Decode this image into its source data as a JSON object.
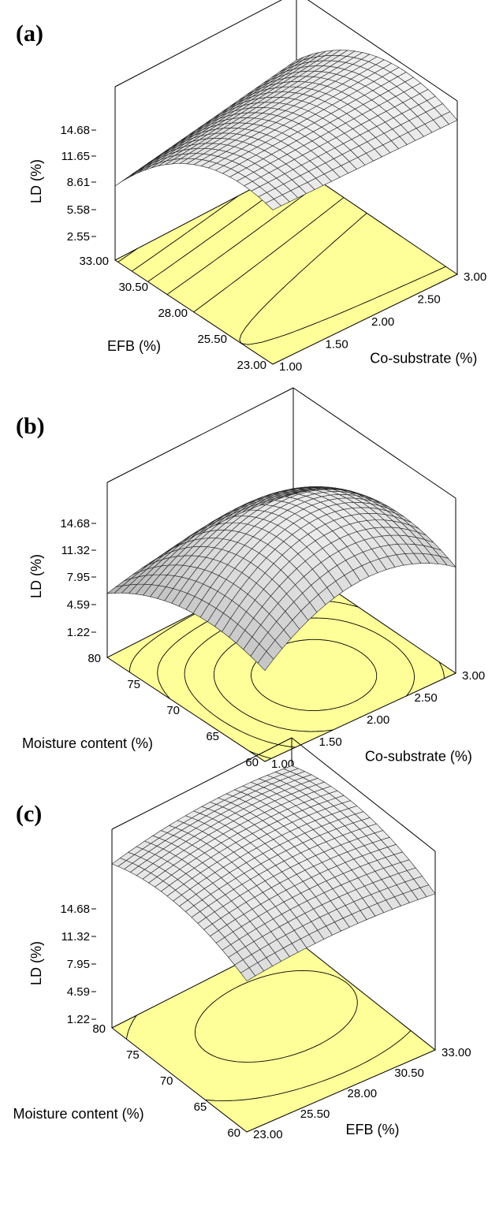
{
  "chart_data": [
    {
      "type": "surface",
      "panel_label": "(a)",
      "zlabel": "LD (%)",
      "z_ticks": [
        "2.55",
        "5.58",
        "8.61",
        "11.65",
        "14.68"
      ],
      "ylabel": "EFB (%)",
      "y_ticks": [
        "23.00",
        "25.50",
        "28.00",
        "30.50",
        "33.00"
      ],
      "xlabel": "Co-substrate (%)",
      "x_ticks": [
        "1.00",
        "1.50",
        "2.00",
        "2.50",
        "3.00"
      ],
      "zlim": [
        2.55,
        14.68
      ],
      "colors": {
        "base": "#ffff99",
        "surface": "#dddddd"
      }
    },
    {
      "type": "surface",
      "panel_label": "(b)",
      "zlabel": "LD (%)",
      "z_ticks": [
        "1.22",
        "4.59",
        "7.95",
        "11.32",
        "14.68"
      ],
      "ylabel": "Moisture content (%)",
      "y_ticks": [
        "60",
        "65",
        "70",
        "75",
        "80"
      ],
      "xlabel": "Co-substrate (%)",
      "x_ticks": [
        "1.00",
        "1.50",
        "2.00",
        "2.50",
        "3.00"
      ],
      "zlim": [
        1.22,
        14.68
      ],
      "colors": {
        "base": "#ffff99",
        "surface": "#dddddd"
      }
    },
    {
      "type": "surface",
      "panel_label": "(c)",
      "zlabel": "LD (%)",
      "z_ticks": [
        "1.22",
        "4.59",
        "7.95",
        "11.32",
        "14.68"
      ],
      "ylabel": "Moisture content (%)",
      "y_ticks": [
        "60",
        "65",
        "70",
        "75",
        "80"
      ],
      "xlabel": "EFB (%)",
      "x_ticks": [
        "23.00",
        "25.50",
        "28.00",
        "30.50",
        "33.00"
      ],
      "zlim": [
        1.22,
        14.68
      ],
      "colors": {
        "base": "#ffff99",
        "surface": "#dddddd"
      }
    }
  ]
}
